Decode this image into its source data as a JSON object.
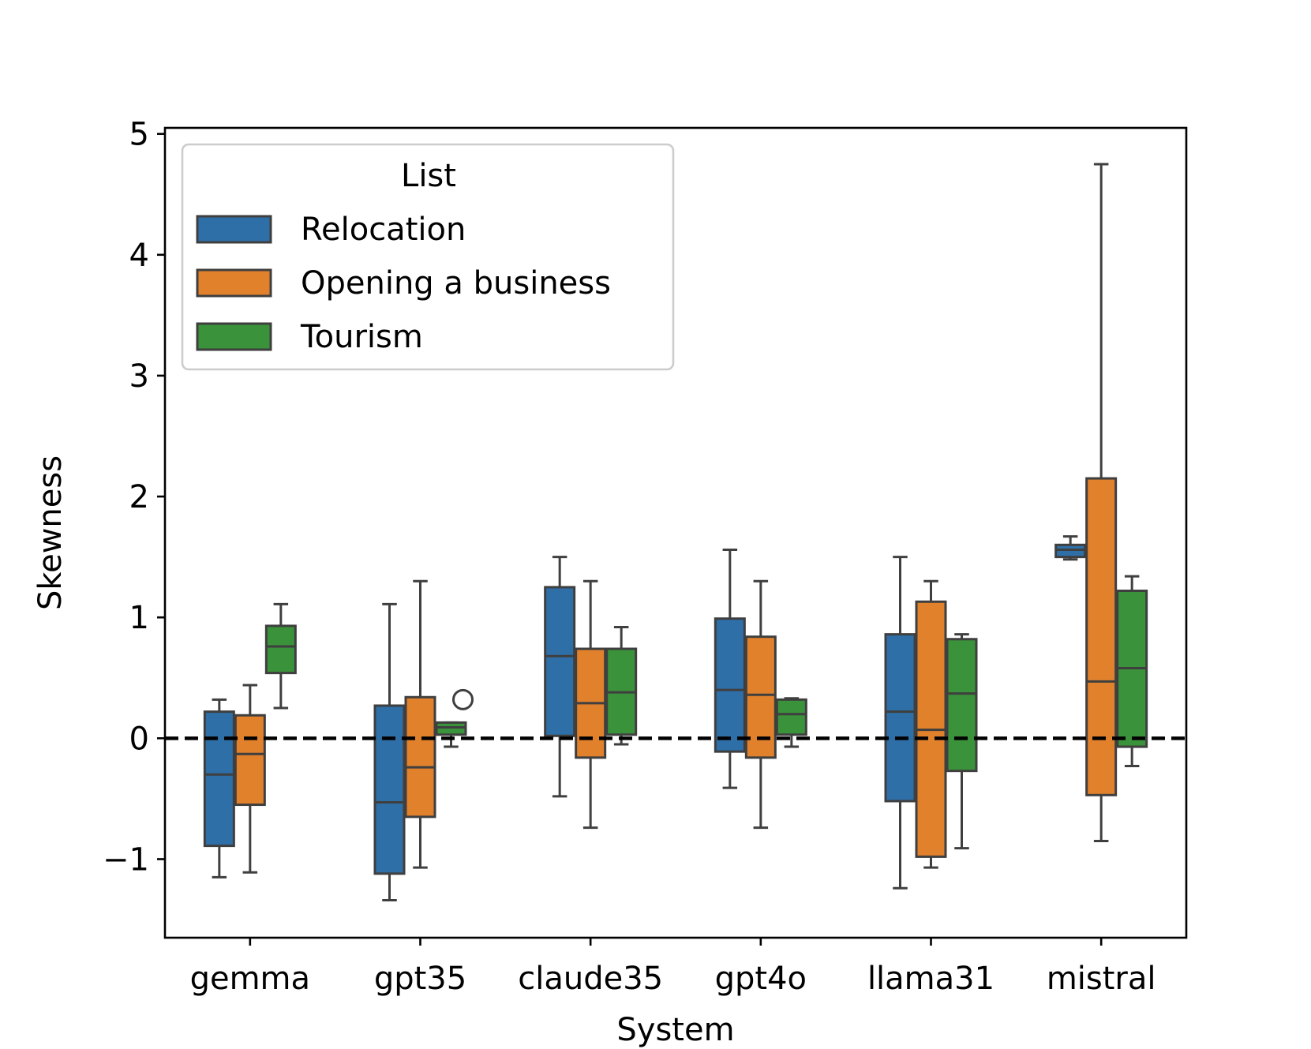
{
  "chart_data": {
    "type": "box",
    "xlabel": "System",
    "ylabel": "Skewness",
    "ylim": [
      -1.65,
      5.05
    ],
    "yticks": [
      -1,
      0,
      1,
      2,
      3,
      4,
      5
    ],
    "ytick_labels": [
      "−1",
      "0",
      "1",
      "2",
      "3",
      "4",
      "5"
    ],
    "categories": [
      "gemma",
      "gpt35",
      "claude35",
      "gpt4o",
      "llama31",
      "mistral"
    ],
    "reference_line": {
      "y": 0,
      "style": "dashed",
      "color": "#000000"
    },
    "legend": {
      "title": "List",
      "placement": "upper-left"
    },
    "series": [
      {
        "name": "Relocation",
        "color": "#2f6fa8",
        "boxes": [
          {
            "whislo": -1.15,
            "q1": -0.89,
            "med": -0.3,
            "q3": 0.22,
            "whishi": 0.32,
            "fliers": []
          },
          {
            "whislo": -1.34,
            "q1": -1.12,
            "med": -0.53,
            "q3": 0.27,
            "whishi": 1.11,
            "fliers": []
          },
          {
            "whislo": -0.48,
            "q1": 0.02,
            "med": 0.68,
            "q3": 1.25,
            "whishi": 1.5,
            "fliers": []
          },
          {
            "whislo": -0.41,
            "q1": -0.11,
            "med": 0.4,
            "q3": 0.99,
            "whishi": 1.56,
            "fliers": []
          },
          {
            "whislo": -1.24,
            "q1": -0.52,
            "med": 0.22,
            "q3": 0.86,
            "whishi": 1.5,
            "fliers": []
          },
          {
            "whislo": 1.48,
            "q1": 1.5,
            "med": 1.56,
            "q3": 1.6,
            "whishi": 1.67,
            "fliers": []
          }
        ]
      },
      {
        "name": "Opening a business",
        "color": "#e1812c",
        "boxes": [
          {
            "whislo": -1.11,
            "q1": -0.55,
            "med": -0.13,
            "q3": 0.19,
            "whishi": 0.44,
            "fliers": []
          },
          {
            "whislo": -1.07,
            "q1": -0.65,
            "med": -0.24,
            "q3": 0.34,
            "whishi": 1.3,
            "fliers": []
          },
          {
            "whislo": -0.74,
            "q1": -0.16,
            "med": 0.29,
            "q3": 0.74,
            "whishi": 1.3,
            "fliers": []
          },
          {
            "whislo": -0.74,
            "q1": -0.16,
            "med": 0.36,
            "q3": 0.84,
            "whishi": 1.3,
            "fliers": []
          },
          {
            "whislo": -1.07,
            "q1": -0.98,
            "med": 0.07,
            "q3": 1.13,
            "whishi": 1.3,
            "fliers": []
          },
          {
            "whislo": -0.85,
            "q1": -0.47,
            "med": 0.47,
            "q3": 2.15,
            "whishi": 4.75,
            "fliers": []
          }
        ]
      },
      {
        "name": "Tourism",
        "color": "#3a923a",
        "boxes": [
          {
            "whislo": 0.25,
            "q1": 0.54,
            "med": 0.76,
            "q3": 0.93,
            "whishi": 1.11,
            "fliers": []
          },
          {
            "whislo": -0.07,
            "q1": 0.03,
            "med": 0.09,
            "q3": 0.13,
            "whishi": 0.13,
            "fliers": [
              0.32
            ]
          },
          {
            "whislo": -0.05,
            "q1": 0.03,
            "med": 0.38,
            "q3": 0.74,
            "whishi": 0.92,
            "fliers": []
          },
          {
            "whislo": -0.07,
            "q1": 0.03,
            "med": 0.2,
            "q3": 0.32,
            "whishi": 0.33,
            "fliers": []
          },
          {
            "whislo": -0.91,
            "q1": -0.27,
            "med": 0.37,
            "q3": 0.82,
            "whishi": 0.86,
            "fliers": []
          },
          {
            "whislo": -0.23,
            "q1": -0.07,
            "med": 0.58,
            "q3": 1.22,
            "whishi": 1.34,
            "fliers": []
          }
        ]
      }
    ]
  }
}
